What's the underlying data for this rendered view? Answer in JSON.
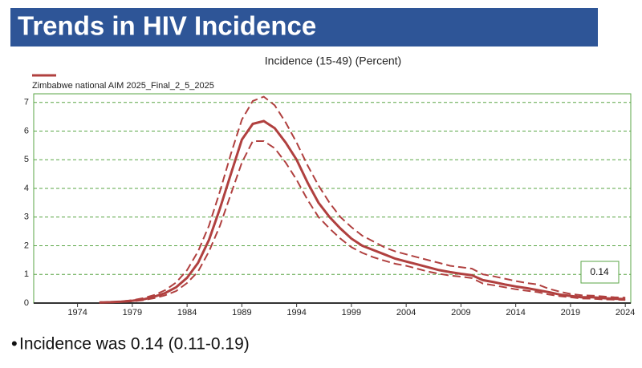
{
  "slide_title": "Trends in HIV Incidence",
  "bullet": "Incidence was 0.14 (0.11-0.19)",
  "chart_data": {
    "type": "line",
    "title": "Incidence (15-49) (Percent)",
    "annotation": "0.14",
    "x": [
      1976,
      1977,
      1978,
      1979,
      1980,
      1981,
      1982,
      1983,
      1984,
      1985,
      1986,
      1987,
      1988,
      1989,
      1990,
      1991,
      1992,
      1993,
      1994,
      1995,
      1996,
      1997,
      1998,
      1999,
      2000,
      2001,
      2002,
      2003,
      2004,
      2005,
      2006,
      2007,
      2008,
      2009,
      2010,
      2011,
      2012,
      2013,
      2014,
      2015,
      2016,
      2017,
      2018,
      2019,
      2020,
      2021,
      2022,
      2023,
      2024
    ],
    "series": [
      {
        "name": "Zimbabwe national AIM 2025_Final_2_5_2025",
        "color": "#b0403f",
        "dashed": false,
        "values": [
          0.02,
          0.03,
          0.05,
          0.08,
          0.13,
          0.22,
          0.35,
          0.55,
          0.88,
          1.4,
          2.2,
          3.3,
          4.5,
          5.7,
          6.25,
          6.35,
          6.1,
          5.6,
          5.0,
          4.2,
          3.5,
          3.0,
          2.6,
          2.25,
          2.0,
          1.85,
          1.7,
          1.55,
          1.45,
          1.35,
          1.25,
          1.15,
          1.08,
          1.02,
          0.97,
          0.8,
          0.73,
          0.65,
          0.58,
          0.52,
          0.45,
          0.38,
          0.3,
          0.25,
          0.2,
          0.2,
          0.17,
          0.15,
          0.14
        ]
      },
      {
        "color": "#b0403f",
        "dashed": true,
        "values": [
          0.02,
          0.03,
          0.06,
          0.1,
          0.17,
          0.28,
          0.45,
          0.72,
          1.15,
          1.8,
          2.7,
          3.9,
          5.2,
          6.4,
          7.05,
          7.2,
          6.9,
          6.3,
          5.6,
          4.8,
          4.1,
          3.5,
          3.0,
          2.65,
          2.35,
          2.15,
          1.95,
          1.8,
          1.7,
          1.6,
          1.5,
          1.4,
          1.3,
          1.25,
          1.2,
          1.0,
          0.93,
          0.85,
          0.77,
          0.7,
          0.65,
          0.5,
          0.4,
          0.32,
          0.27,
          0.26,
          0.23,
          0.2,
          0.19
        ]
      },
      {
        "color": "#b0403f",
        "dashed": true,
        "values": [
          0.01,
          0.02,
          0.04,
          0.06,
          0.1,
          0.17,
          0.27,
          0.42,
          0.7,
          1.1,
          1.8,
          2.7,
          3.8,
          4.9,
          5.65,
          5.65,
          5.4,
          4.9,
          4.3,
          3.6,
          3.0,
          2.6,
          2.25,
          1.95,
          1.75,
          1.6,
          1.48,
          1.37,
          1.3,
          1.2,
          1.1,
          1.02,
          0.96,
          0.92,
          0.87,
          0.68,
          0.62,
          0.55,
          0.48,
          0.43,
          0.38,
          0.3,
          0.24,
          0.2,
          0.16,
          0.15,
          0.13,
          0.12,
          0.11
        ]
      }
    ],
    "xlim": [
      1970,
      2024.5
    ],
    "xticks": [
      1974,
      1979,
      1984,
      1989,
      1994,
      1999,
      2004,
      2009,
      2014,
      2019,
      2024
    ],
    "ylim": [
      0,
      7.3
    ],
    "yticks": [
      0,
      1,
      2,
      3,
      4,
      5,
      6,
      7
    ],
    "grid": true,
    "frame_color": "#5aa646"
  }
}
